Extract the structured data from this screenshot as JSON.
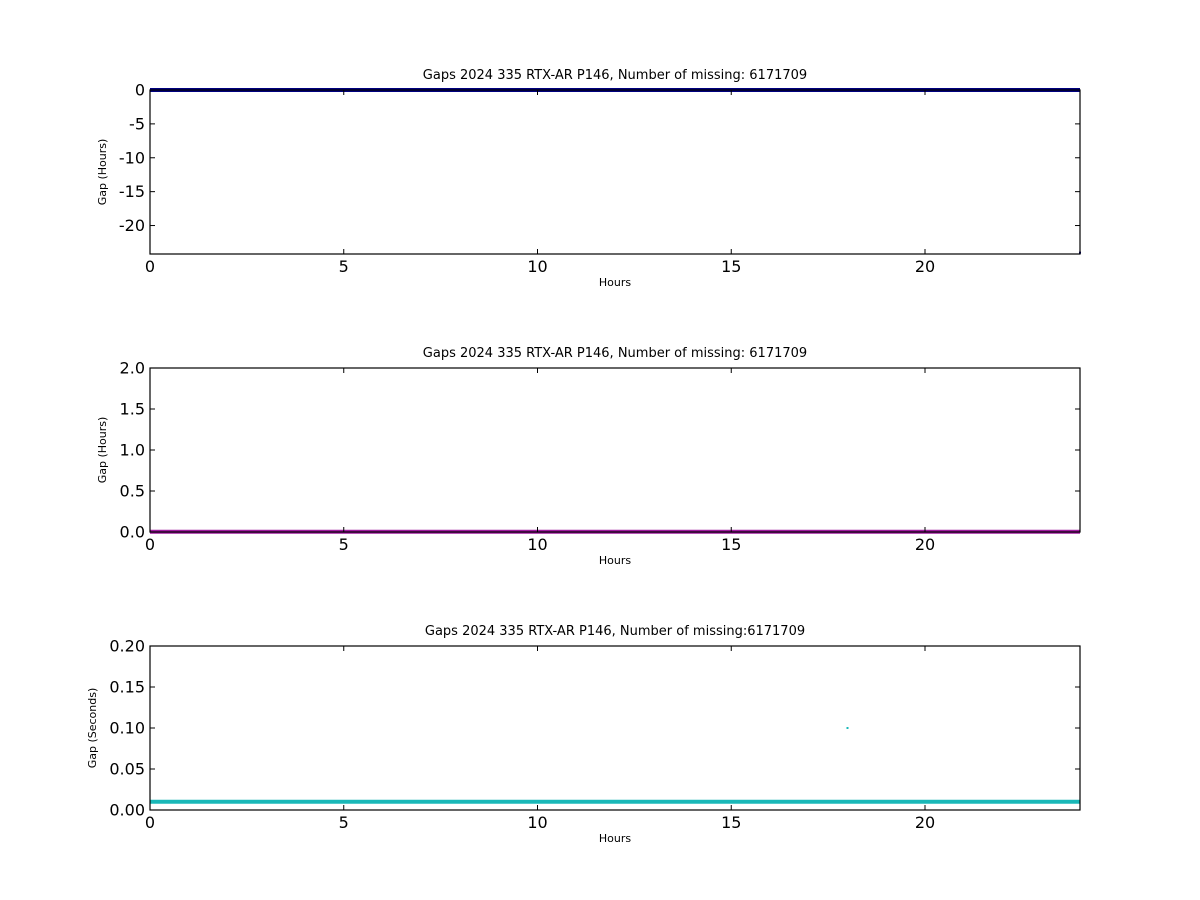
{
  "chart_data": [
    {
      "type": "scatter",
      "title": "Gaps 2024 335 RTX-AR  P146, Number of missing: 6171709",
      "xlabel": "Hours",
      "ylabel": "Gap (Hours)",
      "xlim": [
        0,
        24
      ],
      "ylim": [
        -24.2,
        0
      ],
      "xticks": [
        0,
        5,
        10,
        15,
        20
      ],
      "yticks": [
        0,
        -5,
        -10,
        -15,
        -20
      ],
      "grid": false,
      "series": [
        {
          "color": "#00007f",
          "style": "line",
          "x": [
            0,
            24
          ],
          "y": [
            0,
            0
          ]
        },
        {
          "color": "#00007f",
          "style": "points",
          "x": [
            24
          ],
          "y": [
            -24.0
          ]
        }
      ]
    },
    {
      "type": "line",
      "title": "Gaps 2024 335 RTX-AR  P146, Number of missing: 6171709",
      "xlabel": "Hours",
      "ylabel": "Gap (Hours)",
      "xlim": [
        0,
        24
      ],
      "ylim": [
        0,
        2.0
      ],
      "xticks": [
        0,
        5,
        10,
        15,
        20
      ],
      "yticks": [
        "0.0",
        "0.5",
        "1.0",
        "1.5",
        "2.0"
      ],
      "grid": false,
      "series": [
        {
          "color": "#a01aa0",
          "style": "line",
          "x": [
            0,
            24
          ],
          "y": [
            0.003,
            0.003
          ]
        }
      ]
    },
    {
      "type": "scatter",
      "title": "Gaps 2024 335 RTX-AR  P146, Number of missing:6171709",
      "xlabel": "Hours",
      "ylabel": "Gap (Seconds)",
      "xlim": [
        0,
        24
      ],
      "ylim": [
        0,
        0.2
      ],
      "xticks": [
        0,
        5,
        10,
        15,
        20
      ],
      "yticks": [
        "0.00",
        "0.05",
        "0.10",
        "0.15",
        "0.20"
      ],
      "grid": false,
      "series": [
        {
          "color": "#1ab8b8",
          "style": "line",
          "x": [
            0,
            24
          ],
          "y": [
            0.01,
            0.01
          ]
        },
        {
          "color": "#1ab8b8",
          "style": "points",
          "x": [
            18.0
          ],
          "y": [
            0.1
          ]
        }
      ]
    }
  ]
}
